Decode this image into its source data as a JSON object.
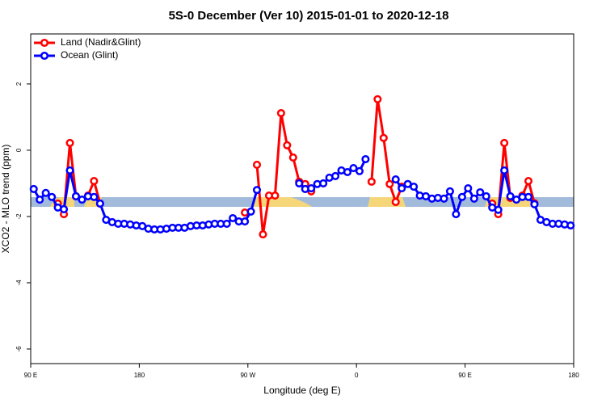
{
  "chart_data": {
    "type": "line",
    "title": "5S-0 December (Ver 10)   2015-01-01 to 2020-12-18",
    "xlabel": "Longitude (deg E)",
    "ylabel": "XCO2 - MLO trend (ppm)",
    "xlim": [
      90,
      540
    ],
    "ylim": [
      -6.44,
      3.51
    ],
    "xticks": [
      {
        "value": 90,
        "label": "90 E"
      },
      180,
      {
        "value": 270,
        "label": "90 W"
      },
      {
        "value": 360,
        "label": "0"
      },
      {
        "value": 450,
        "label": "90 E"
      },
      {
        "value": 540,
        "label": "180"
      }
    ],
    "yticks": [
      2,
      0,
      -2,
      -4,
      -6
    ],
    "legend": "top-left",
    "x": [
      92.5,
      97.5,
      102.5,
      107.5,
      112.5,
      117.5,
      122.5,
      127.5,
      132.5,
      137.5,
      142.5,
      147.5,
      152.5,
      157.5,
      162.5,
      167.5,
      172.5,
      177.5,
      182.5,
      187.5,
      192.5,
      197.5,
      202.5,
      207.5,
      212.5,
      217.5,
      222.5,
      227.5,
      232.5,
      237.5,
      242.5,
      247.5,
      252.5,
      257.5,
      262.5,
      267.5,
      272.5,
      277.5,
      282.5,
      287.5,
      292.5,
      297.5,
      302.5,
      307.5,
      312.5,
      317.5,
      322.5,
      327.5,
      332.5,
      337.5,
      342.5,
      347.5,
      352.5,
      357.5,
      362.5,
      367.5,
      372.5,
      377.5,
      382.5,
      387.5,
      392.5,
      397.5,
      402.5,
      407.5,
      412.5,
      417.5,
      422.5,
      427.5,
      432.5,
      437.5,
      442.5,
      447.5,
      452.5,
      457.5,
      462.5,
      467.5,
      472.5,
      477.5,
      482.5,
      487.5,
      492.5,
      497.5,
      502.5,
      507.5,
      512.5,
      517.5,
      522.5,
      527.5,
      532.5,
      537.5
    ],
    "series": [
      {
        "name": "Land (Nadir&Glint)",
        "color": "#ff0000",
        "values": [
          null,
          null,
          null,
          null,
          -1.61,
          -1.93,
          0.22,
          -1.39,
          null,
          -1.37,
          -0.93,
          -1.61,
          null,
          null,
          null,
          null,
          null,
          null,
          null,
          null,
          null,
          null,
          null,
          null,
          null,
          null,
          null,
          null,
          null,
          null,
          null,
          null,
          null,
          null,
          null,
          -1.88,
          null,
          -0.44,
          -2.54,
          -1.37,
          -1.37,
          1.12,
          0.15,
          -0.22,
          -0.95,
          -1.02,
          -1.24,
          null,
          null,
          null,
          null,
          null,
          null,
          null,
          null,
          null,
          -0.95,
          1.54,
          0.37,
          -1.02,
          -1.56,
          -1.1,
          null,
          null,
          null,
          null,
          null,
          null,
          null,
          null,
          null,
          null,
          null,
          null,
          null,
          null,
          -1.61,
          -1.93,
          0.22,
          -1.44,
          null,
          -1.37,
          -0.93,
          -1.6,
          null,
          null,
          null,
          null,
          null,
          null
        ]
      },
      {
        "name": "Ocean (Glint)",
        "color": "#0000ff",
        "values": [
          -1.17,
          -1.49,
          -1.29,
          -1.41,
          -1.73,
          -1.78,
          -0.61,
          -1.39,
          -1.49,
          -1.39,
          -1.41,
          -1.61,
          -2.1,
          -2.17,
          -2.22,
          -2.22,
          -2.24,
          -2.27,
          -2.29,
          -2.37,
          -2.39,
          -2.39,
          -2.37,
          -2.34,
          -2.34,
          -2.34,
          -2.29,
          -2.27,
          -2.27,
          -2.24,
          -2.22,
          -2.22,
          -2.22,
          -2.05,
          -2.15,
          -2.15,
          -1.85,
          -1.2,
          null,
          null,
          null,
          null,
          null,
          null,
          -1.0,
          -1.17,
          -1.15,
          -1.02,
          -1.0,
          -0.83,
          -0.78,
          -0.61,
          -0.66,
          -0.54,
          -0.63,
          -0.27,
          null,
          null,
          null,
          null,
          -0.88,
          -1.15,
          -1.02,
          -1.1,
          -1.37,
          -1.39,
          -1.46,
          -1.44,
          -1.46,
          -1.24,
          -1.93,
          -1.41,
          -1.15,
          -1.46,
          -1.27,
          -1.39,
          -1.73,
          -1.8,
          -0.61,
          -1.39,
          -1.49,
          -1.41,
          -1.41,
          -1.63,
          -2.1,
          -2.17,
          -2.22,
          -2.22,
          -2.24,
          -2.27
        ]
      }
    ]
  }
}
